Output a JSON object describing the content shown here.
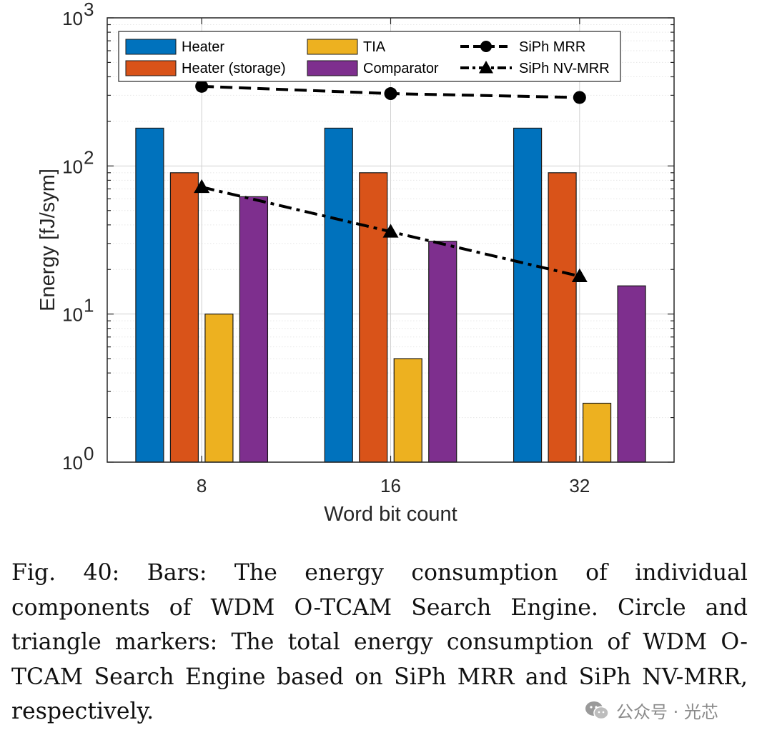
{
  "chart_data": {
    "type": "bar",
    "title": "",
    "xlabel": "Word bit count",
    "ylabel": "Energy [fJ/sym]",
    "yscale": "log",
    "ylim": [
      1,
      1000
    ],
    "categories": [
      "8",
      "16",
      "32"
    ],
    "yticks": [
      {
        "base": "10",
        "exp": "0"
      },
      {
        "base": "10",
        "exp": "1"
      },
      {
        "base": "10",
        "exp": "2"
      },
      {
        "base": "10",
        "exp": "3"
      }
    ],
    "grid": true,
    "legend_position": "top",
    "series": [
      {
        "name": "Heater",
        "kind": "bar",
        "color": "#0072BD",
        "values": [
          180,
          180,
          180
        ]
      },
      {
        "name": "Heater (storage)",
        "kind": "bar",
        "color": "#D95319",
        "values": [
          90,
          90,
          90
        ]
      },
      {
        "name": "TIA",
        "kind": "bar",
        "color": "#EDB120",
        "values": [
          10,
          5,
          2.5
        ]
      },
      {
        "name": "Comparator",
        "kind": "bar",
        "color": "#7E2F8E",
        "values": [
          62,
          31,
          15.5
        ]
      },
      {
        "name": "SiPh MRR",
        "kind": "line",
        "marker": "circle",
        "linestyle": "dashed",
        "color": "#000000",
        "values": [
          345,
          308,
          290
        ]
      },
      {
        "name": "SiPh NV-MRR",
        "kind": "line",
        "marker": "triangle",
        "linestyle": "dash-dot",
        "color": "#000000",
        "values": [
          72,
          36,
          18
        ]
      }
    ]
  },
  "caption": "Fig. 40: Bars: The energy consumption of individual components of WDM O-TCAM Search Engine. Circle and triangle markers: The total energy consumption of WDM O-TCAM Search Engine based on SiPh MRR and SiPh NV-MRR, respectively.",
  "watermark": {
    "icon": "wechat-icon",
    "text": "公众号 · 光芯"
  }
}
